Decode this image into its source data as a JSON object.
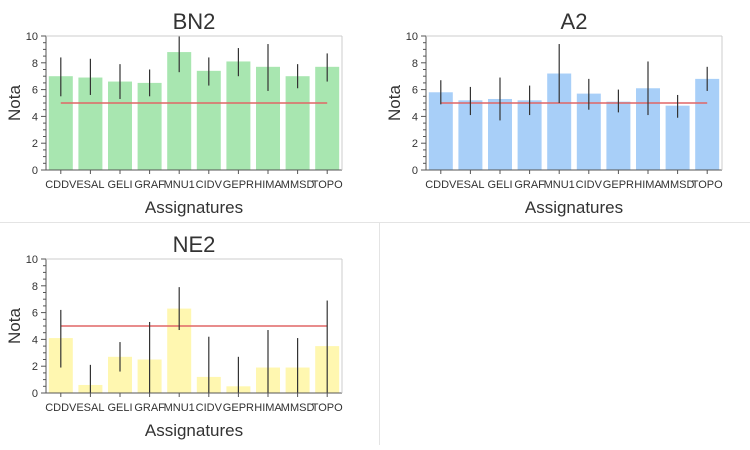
{
  "chart_data": [
    {
      "type": "bar",
      "title": "BN2",
      "xlabel": "Assignatures",
      "ylabel": "Nota",
      "ylim": [
        0,
        10
      ],
      "yticks": [
        0,
        2,
        4,
        6,
        8,
        10
      ],
      "grid": false,
      "categories": [
        "CDDV",
        "ESAL",
        "GELI",
        "GRAF",
        "MNU1",
        "CIDV",
        "GEPR",
        "HIMA",
        "MMSD",
        "TOPO"
      ],
      "values": [
        7.0,
        6.9,
        6.6,
        6.5,
        8.8,
        7.4,
        8.1,
        7.7,
        7.0,
        7.7
      ],
      "error_low": [
        5.5,
        5.6,
        5.3,
        5.5,
        7.3,
        6.3,
        7.0,
        5.9,
        6.1,
        6.6
      ],
      "error_high": [
        8.4,
        8.3,
        7.9,
        7.5,
        10.0,
        8.4,
        9.1,
        9.4,
        7.9,
        8.7
      ],
      "reference_line": 5,
      "colors": {
        "bar": "#a8e6b0",
        "error": "#333333",
        "reference": "#e06666"
      }
    },
    {
      "type": "bar",
      "title": "A2",
      "xlabel": "Assignatures",
      "ylabel": "Nota",
      "ylim": [
        0,
        10
      ],
      "yticks": [
        0,
        2,
        4,
        6,
        8,
        10
      ],
      "grid": false,
      "categories": [
        "CDDV",
        "ESAL",
        "GELI",
        "GRAF",
        "MNU1",
        "CIDV",
        "GEPR",
        "HIMA",
        "MMSD",
        "TOPO"
      ],
      "values": [
        5.8,
        5.2,
        5.3,
        5.2,
        7.2,
        5.7,
        5.1,
        6.1,
        4.8,
        6.8
      ],
      "error_low": [
        4.9,
        4.1,
        3.7,
        4.1,
        5.0,
        4.5,
        4.3,
        4.1,
        3.9,
        5.9
      ],
      "error_high": [
        6.7,
        6.2,
        6.9,
        6.3,
        9.4,
        6.8,
        6.0,
        8.1,
        5.6,
        7.7
      ],
      "reference_line": 5,
      "colors": {
        "bar": "#a8cff8",
        "error": "#333333",
        "reference": "#e06666"
      }
    },
    {
      "type": "bar",
      "title": "NE2",
      "xlabel": "Assignatures",
      "ylabel": "Nota",
      "ylim": [
        0,
        10
      ],
      "yticks": [
        0,
        2,
        4,
        6,
        8,
        10
      ],
      "grid": false,
      "categories": [
        "CDDV",
        "ESAL",
        "GELI",
        "GRAF",
        "MNU1",
        "CIDV",
        "GEPR",
        "HIMA",
        "MMSD",
        "TOPO"
      ],
      "values": [
        4.1,
        0.6,
        2.7,
        2.5,
        6.3,
        1.2,
        0.5,
        1.9,
        1.9,
        3.5
      ],
      "error_low": [
        1.9,
        0.0,
        1.6,
        0.0,
        4.7,
        0.0,
        0.0,
        0.0,
        0.0,
        0.0
      ],
      "error_high": [
        6.2,
        2.1,
        3.8,
        5.3,
        7.9,
        4.2,
        2.7,
        4.7,
        4.1,
        6.9
      ],
      "reference_line": 5,
      "colors": {
        "bar": "#fff7b0",
        "error": "#333333",
        "reference": "#e06666"
      }
    }
  ],
  "colors": {
    "axis": "#555555",
    "tick_text": "#333333",
    "title_text": "#333333",
    "divider": "#e4e4e4"
  }
}
